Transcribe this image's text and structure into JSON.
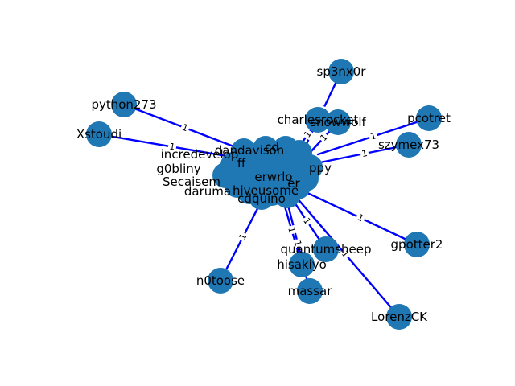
{
  "graph": {
    "colors": {
      "edge": "#0000ff",
      "node": "#1f77b4",
      "label": "#000000"
    },
    "hub_labels": [
      "incredevelop",
      "dandavison",
      "g0bliny",
      "Secaisem",
      "daruma",
      "cdquino",
      "hiveusome",
      "erwrlo"
    ],
    "outer_nodes": [
      {
        "id": "sp3nx0r",
        "label": "sp3nx0r",
        "weight": "1"
      },
      {
        "id": "charlesrocket",
        "label": "charlesrocket",
        "weight": "1"
      },
      {
        "id": "snowwolf",
        "label": "snowwolf",
        "weight": "1"
      },
      {
        "id": "python273",
        "label": "python273",
        "weight": "1"
      },
      {
        "id": "Xstoudi",
        "label": "Xstoudi",
        "weight": "1"
      },
      {
        "id": "pcotret",
        "label": "pcotret",
        "weight": "1"
      },
      {
        "id": "szymex73",
        "label": "szymex73",
        "weight": "1"
      },
      {
        "id": "gpotter2",
        "label": "gpotter2",
        "weight": "1"
      },
      {
        "id": "quantumsheep",
        "label": "quantumsheep",
        "weight": "1"
      },
      {
        "id": "hisakiyo",
        "label": "hisakiyo",
        "weight": "1"
      },
      {
        "id": "massar",
        "label": "massar",
        "weight": "1"
      },
      {
        "id": "n0toose",
        "label": "n0toose",
        "weight": "1"
      },
      {
        "id": "LorenzCK",
        "label": "LorenzCK",
        "weight": "1"
      }
    ]
  }
}
